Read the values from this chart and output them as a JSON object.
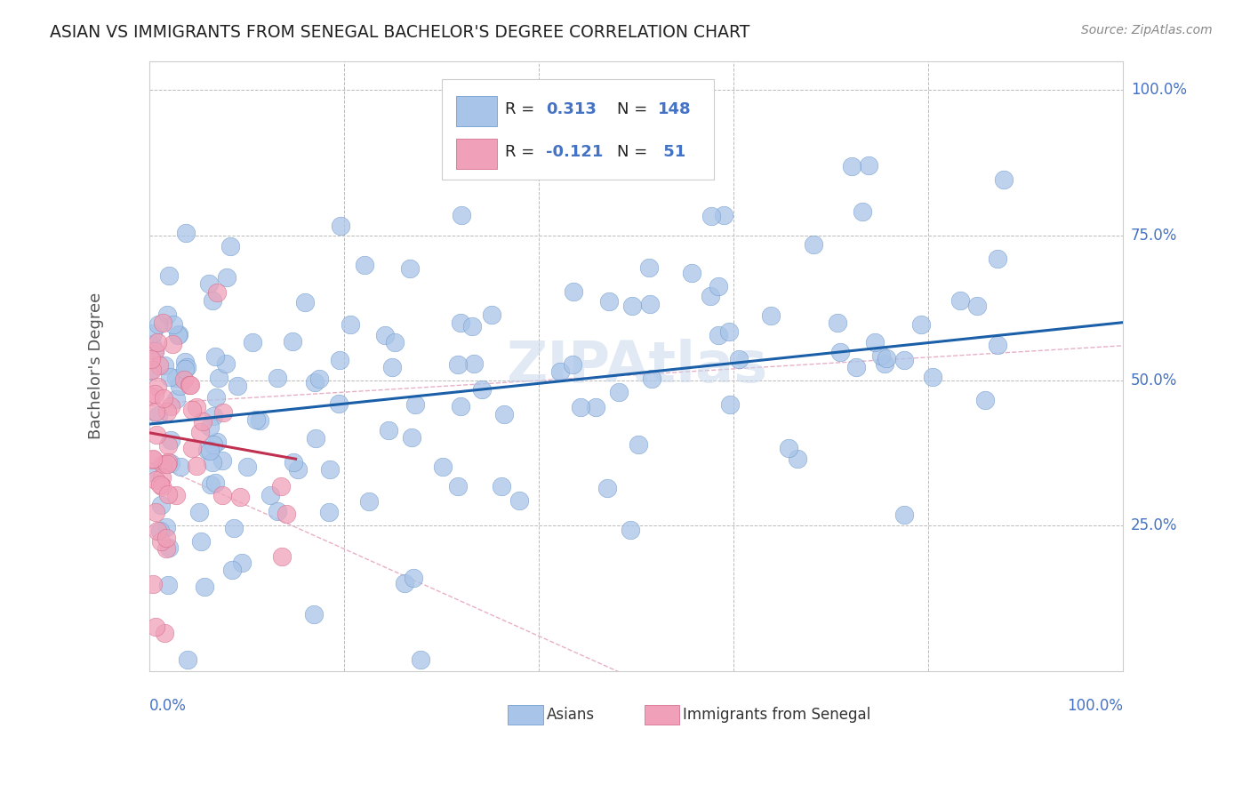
{
  "title": "ASIAN VS IMMIGRANTS FROM SENEGAL BACHELOR'S DEGREE CORRELATION CHART",
  "source": "Source: ZipAtlas.com",
  "ylabel": "Bachelor's Degree",
  "asian_color": "#a8c4e8",
  "senegal_color": "#f0a0b8",
  "trend_asian_color": "#1a5fa8",
  "trend_senegal_color": "#c03050",
  "trend_ci_color": "#e8b0c8",
  "watermark": "ZIPAtlas",
  "asian_N": 148,
  "senegal_N": 51,
  "asian_R": 0.313,
  "senegal_R": -0.121,
  "asian_intercept": 0.425,
  "asian_slope": 0.175,
  "senegal_intercept": 0.41,
  "senegal_slope": -0.3,
  "xlim": [
    0.0,
    1.0
  ],
  "ylim": [
    0.0,
    1.05
  ]
}
